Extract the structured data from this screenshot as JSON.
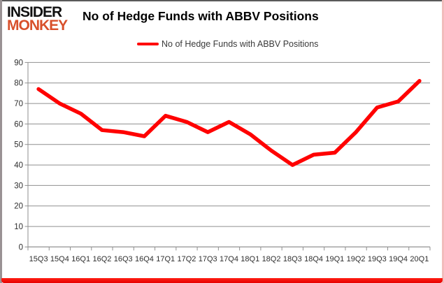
{
  "logo": {
    "line1": "INSIDER",
    "line2": "MONKEY"
  },
  "header": {
    "title": "No of Hedge Funds with ABBV Positions"
  },
  "legend": {
    "label": "No of Hedge Funds with ABBV Positions"
  },
  "colors": {
    "series_red": "#ff0000",
    "logo_orange": "#d8502b",
    "gridline_gray": "#8f8f8f",
    "tick_text": "#2f2f2f"
  },
  "chart_data": {
    "type": "line",
    "title": "No of Hedge Funds with ABBV Positions",
    "categories": [
      "15Q3",
      "15Q4",
      "16Q1",
      "16Q2",
      "16Q3",
      "16Q4",
      "17Q1",
      "17Q2",
      "17Q3",
      "17Q4",
      "18Q1",
      "18Q2",
      "18Q3",
      "18Q4",
      "19Q1",
      "19Q2",
      "19Q3",
      "19Q4",
      "20Q1"
    ],
    "series": [
      {
        "name": "No of Hedge Funds with ABBV Positions",
        "color": "#ff0000",
        "values": [
          77,
          70,
          65,
          57,
          56,
          54,
          64,
          61,
          56,
          61,
          55,
          47,
          40,
          45,
          46,
          56,
          68,
          71,
          81
        ]
      }
    ],
    "xlabel": "",
    "ylabel": "",
    "ylim": [
      0,
      90
    ],
    "yticks": [
      0,
      10,
      20,
      30,
      40,
      50,
      60,
      70,
      80,
      90
    ],
    "grid": true,
    "legend_position": "top"
  }
}
